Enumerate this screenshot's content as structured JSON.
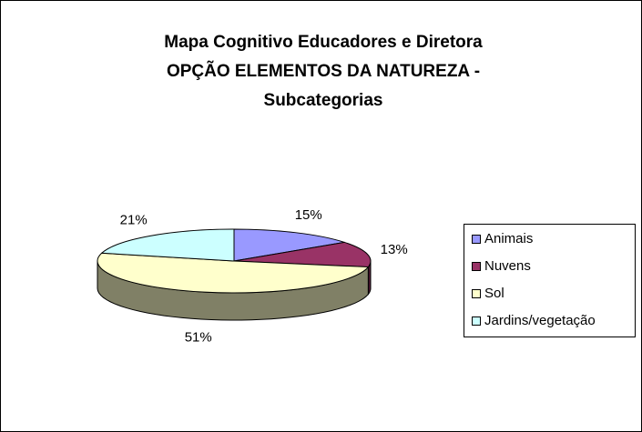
{
  "chart_data": {
    "type": "pie3d",
    "title": [
      "Mapa Cognitivo Educadores e Diretora",
      "OPÇÃO ELEMENTOS DA NATUREZA -",
      "Subcategorias"
    ],
    "categories": [
      "Animais",
      "Nuvens",
      "Sol",
      "Jardins/vegetação"
    ],
    "values": [
      15,
      13,
      51,
      21
    ],
    "value_labels": [
      "15%",
      "13%",
      "51%",
      "21%"
    ],
    "colors": [
      "#9999ff",
      "#993366",
      "#ffffcc",
      "#ccffff"
    ],
    "legend": "right"
  }
}
